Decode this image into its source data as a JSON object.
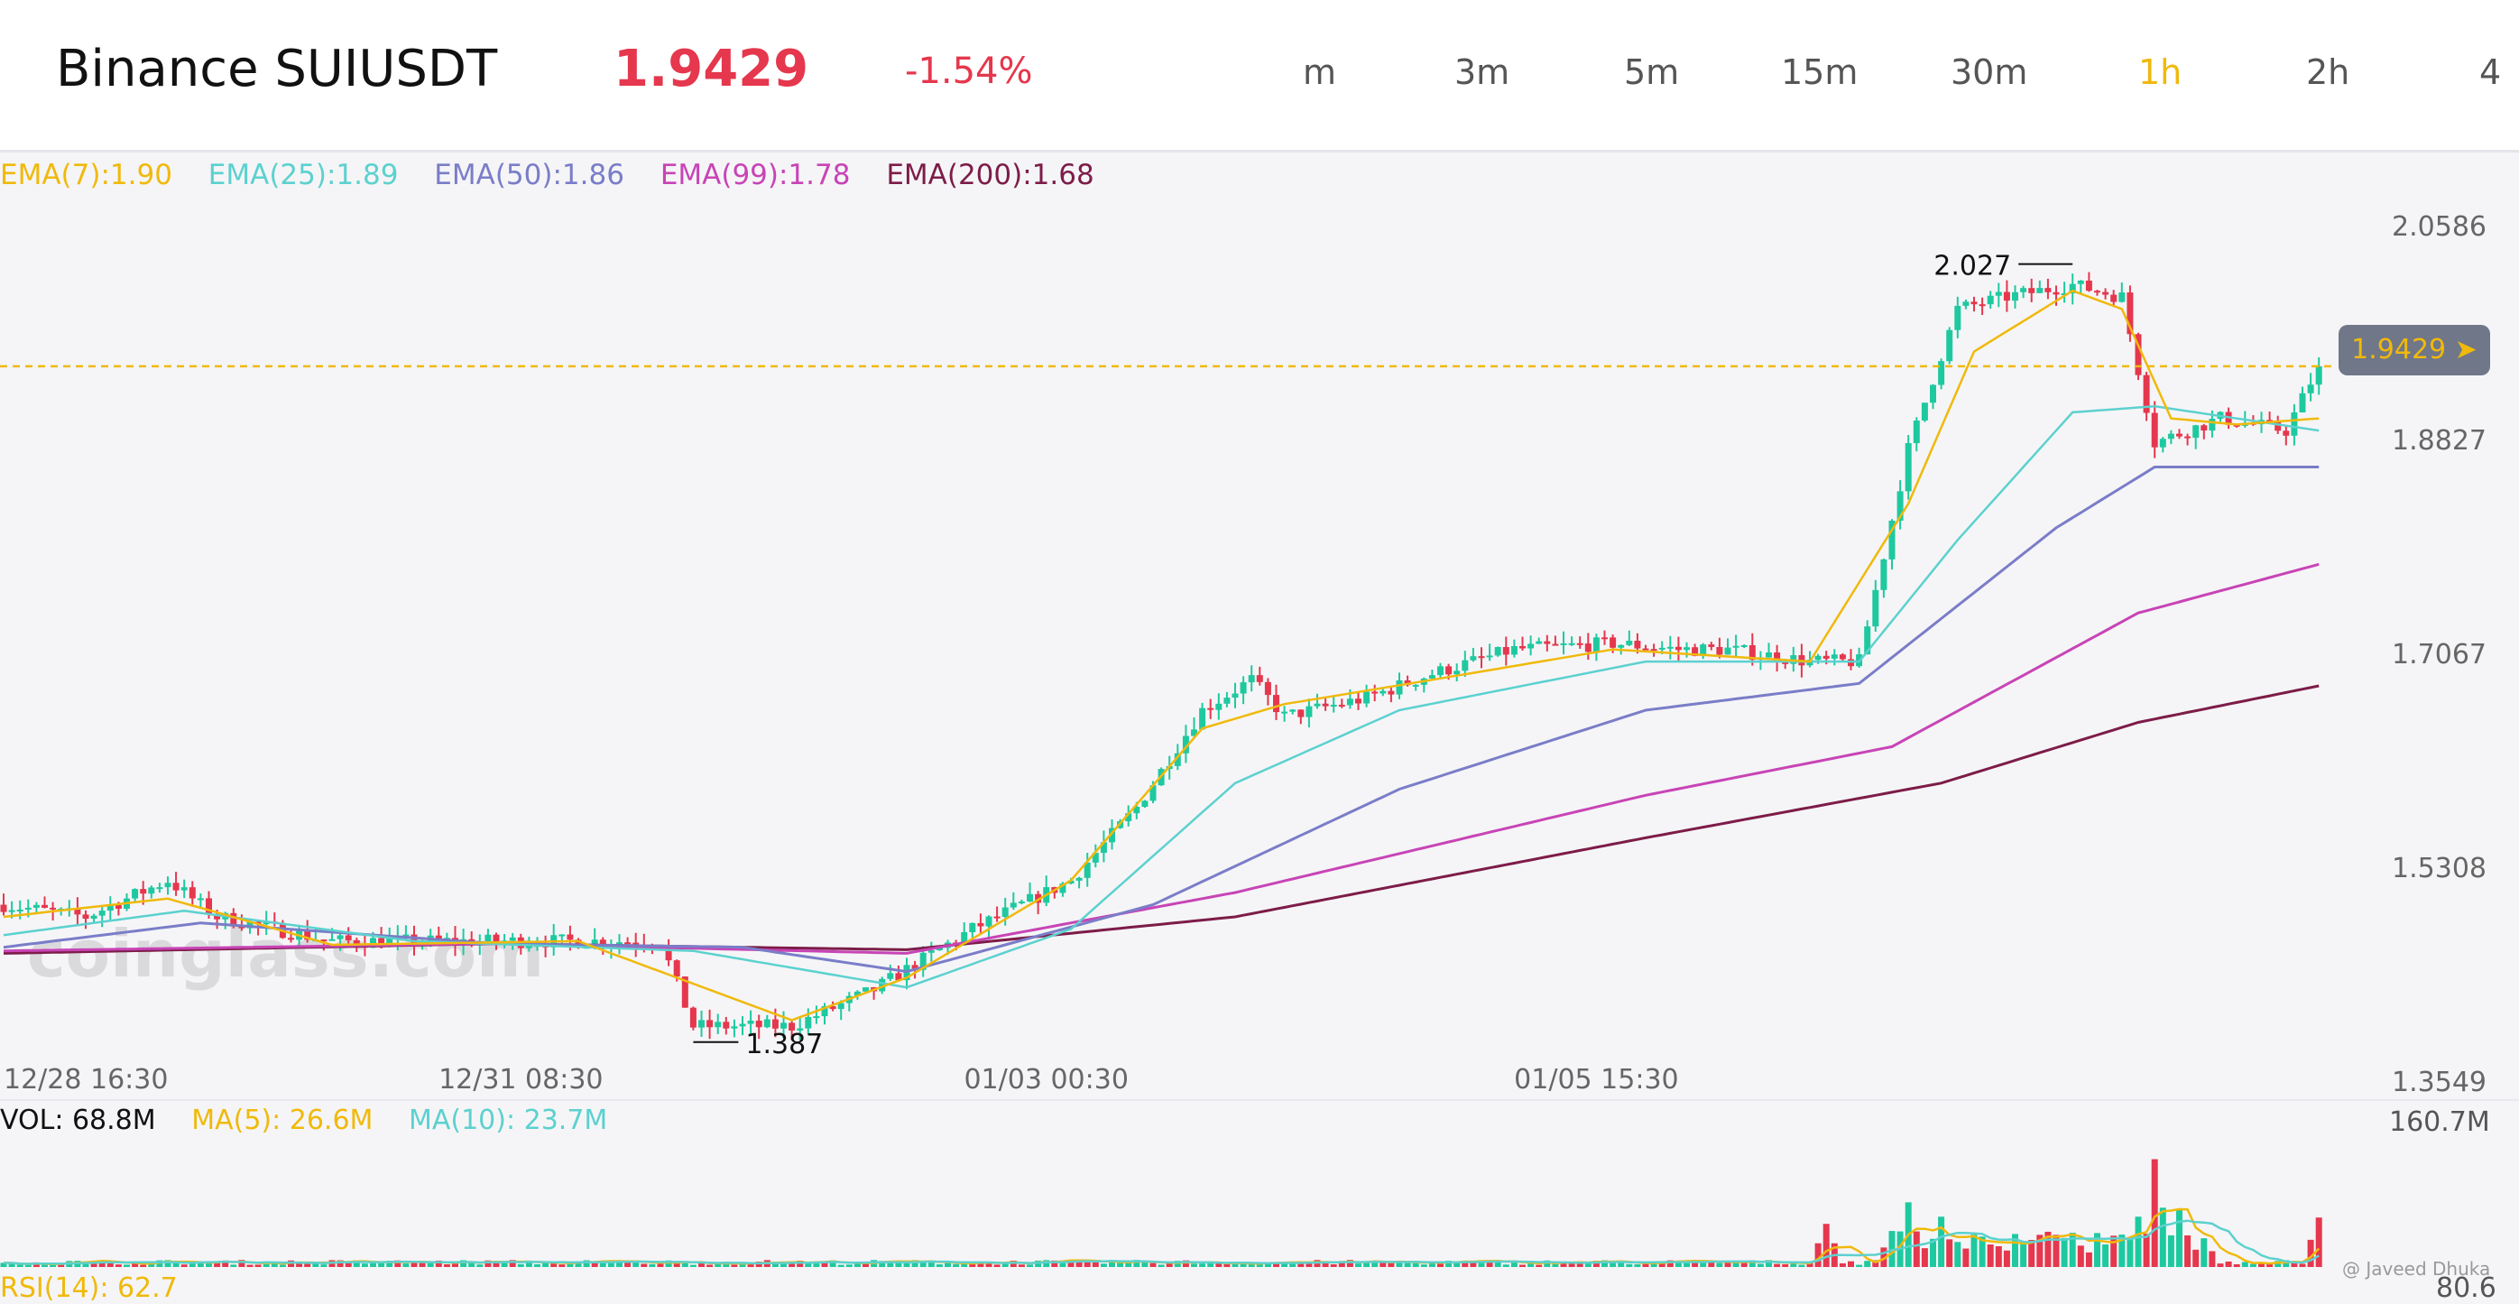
{
  "header": {
    "title": "Binance SUIUSDT",
    "price": "1.9429",
    "change": "-1.54%",
    "timeframes": [
      "m",
      "3m",
      "5m",
      "15m",
      "30m",
      "1h",
      "2h",
      "4"
    ],
    "active_timeframe": "1h"
  },
  "legend": {
    "ema7": "EMA(7):1.90",
    "ema25": "EMA(25):1.89",
    "ema50": "EMA(50):1.86",
    "ema99": "EMA(99):1.78",
    "ema200": "EMA(200):1.68"
  },
  "colors": {
    "up": "#1fc9a0",
    "down": "#e5374d",
    "ema7": "#f0b90b",
    "ema25": "#5cd1cf",
    "ema50": "#7a7dc8",
    "ema99": "#c844b6",
    "ema200": "#7d1c48"
  },
  "price_tag": "1.9429 ➤",
  "volume": {
    "vol": "VOL: 68.8M",
    "ma5": "MA(5): 26.6M",
    "ma10": "MA(10): 23.7M",
    "max_label": "160.7M"
  },
  "rsi": {
    "label": "RSI(14): 62.7",
    "right_label": "80.6"
  },
  "credit": "@ Javeed Dhuka",
  "chart_data": {
    "type": "candlestick",
    "symbol": "SUIUSDT",
    "exchange": "Binance",
    "interval": "1h",
    "last_price": 1.9429,
    "y_ticks": [
      2.0586,
      1.8827,
      1.7067,
      1.5308,
      1.3549
    ],
    "ylim": [
      1.3549,
      2.0586
    ],
    "x_ticks": [
      "12/28 16:30",
      "12/31 08:30",
      "01/03 00:30",
      "01/05 15:30"
    ],
    "annotations": [
      {
        "text": "2.027",
        "value": 2.027,
        "kind": "high"
      },
      {
        "text": "1.387",
        "value": 1.387,
        "kind": "low"
      }
    ],
    "close_anchors": [
      [
        0,
        1.5
      ],
      [
        10,
        1.49
      ],
      [
        20,
        1.52
      ],
      [
        26,
        1.49
      ],
      [
        40,
        1.47
      ],
      [
        55,
        1.47
      ],
      [
        70,
        1.47
      ],
      [
        80,
        1.47
      ],
      [
        84,
        1.4
      ],
      [
        96,
        1.4
      ],
      [
        106,
        1.43
      ],
      [
        118,
        1.48
      ],
      [
        130,
        1.52
      ],
      [
        138,
        1.58
      ],
      [
        146,
        1.66
      ],
      [
        152,
        1.685
      ],
      [
        156,
        1.655
      ],
      [
        166,
        1.67
      ],
      [
        174,
        1.69
      ],
      [
        184,
        1.71
      ],
      [
        196,
        1.715
      ],
      [
        204,
        1.71
      ],
      [
        210,
        1.71
      ],
      [
        220,
        1.7
      ],
      [
        226,
        1.7
      ],
      [
        232,
        1.875
      ],
      [
        238,
        1.99
      ],
      [
        244,
        2.0
      ],
      [
        252,
        2.01
      ],
      [
        258,
        2.0
      ],
      [
        262,
        1.88
      ],
      [
        270,
        1.9
      ],
      [
        278,
        1.89
      ],
      [
        282,
        1.9429
      ]
    ],
    "ema_anchors": {
      "ema7": [
        [
          0,
          1.49
        ],
        [
          20,
          1.505
        ],
        [
          40,
          1.467
        ],
        [
          70,
          1.47
        ],
        [
          84,
          1.435
        ],
        [
          96,
          1.405
        ],
        [
          110,
          1.44
        ],
        [
          130,
          1.52
        ],
        [
          146,
          1.645
        ],
        [
          156,
          1.665
        ],
        [
          174,
          1.685
        ],
        [
          196,
          1.71
        ],
        [
          220,
          1.7
        ],
        [
          232,
          1.83
        ],
        [
          240,
          1.955
        ],
        [
          252,
          2.005
        ],
        [
          258,
          1.99
        ],
        [
          264,
          1.9
        ],
        [
          272,
          1.895
        ],
        [
          282,
          1.9
        ]
      ],
      "ema25": [
        [
          0,
          1.475
        ],
        [
          22,
          1.495
        ],
        [
          50,
          1.47
        ],
        [
          84,
          1.462
        ],
        [
          110,
          1.432
        ],
        [
          130,
          1.48
        ],
        [
          150,
          1.6
        ],
        [
          170,
          1.66
        ],
        [
          200,
          1.7
        ],
        [
          226,
          1.7
        ],
        [
          238,
          1.8
        ],
        [
          252,
          1.905
        ],
        [
          262,
          1.91
        ],
        [
          282,
          1.89
        ]
      ],
      "ema50": [
        [
          0,
          1.465
        ],
        [
          24,
          1.485
        ],
        [
          60,
          1.468
        ],
        [
          90,
          1.465
        ],
        [
          110,
          1.445
        ],
        [
          140,
          1.5
        ],
        [
          170,
          1.595
        ],
        [
          200,
          1.66
        ],
        [
          226,
          1.682
        ],
        [
          250,
          1.81
        ],
        [
          262,
          1.86
        ],
        [
          282,
          1.86
        ]
      ],
      "ema99": [
        [
          0,
          1.462
        ],
        [
          60,
          1.468
        ],
        [
          110,
          1.46
        ],
        [
          150,
          1.51
        ],
        [
          200,
          1.59
        ],
        [
          230,
          1.63
        ],
        [
          260,
          1.74
        ],
        [
          282,
          1.78
        ]
      ],
      "ema200": [
        [
          0,
          1.46
        ],
        [
          60,
          1.468
        ],
        [
          110,
          1.463
        ],
        [
          150,
          1.49
        ],
        [
          200,
          1.555
        ],
        [
          236,
          1.6
        ],
        [
          260,
          1.65
        ],
        [
          282,
          1.68
        ]
      ]
    },
    "volume": {
      "last_M": 68.8,
      "ma5_M": 26.6,
      "ma10_M": 23.7,
      "max_M": 160.7,
      "spikes": [
        [
          222,
          60
        ],
        [
          232,
          90
        ],
        [
          236,
          70
        ],
        [
          240,
          45
        ],
        [
          260,
          70
        ],
        [
          262,
          150
        ],
        [
          265,
          80
        ],
        [
          268,
          40
        ],
        [
          282,
          68.8
        ]
      ]
    }
  }
}
